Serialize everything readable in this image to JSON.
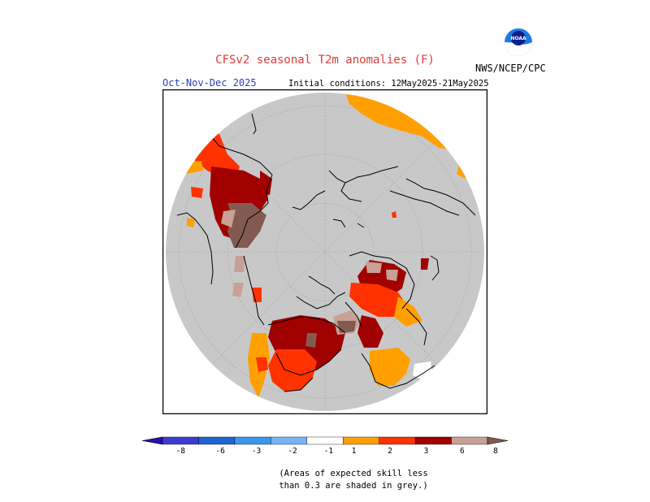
{
  "header": {
    "title": "CFSv2 seasonal T2m anomalies (F)",
    "period": "Oct-Nov-Dec 2025",
    "initial_conditions": "Initial conditions: 12May2025-21May2025",
    "agency": "NWS/NCEP/CPC",
    "logo_text": "NOAA"
  },
  "colorbar": {
    "labels": [
      "-8",
      "-6",
      "-3",
      "-2",
      "-1",
      "1",
      "2",
      "3",
      "6",
      "8"
    ],
    "colors": [
      "#2a0fa8",
      "#3c3cd2",
      "#1e64d2",
      "#3c96ee",
      "#78b4f5",
      "#ffffff",
      "#ffa000",
      "#ff3200",
      "#a00000",
      "#c8a096",
      "#825a50"
    ]
  },
  "note": {
    "line1": "(Areas of expected skill less",
    "line2": "than 0.3 are shaded in grey.)"
  },
  "map": {
    "background": "#c8c8c8",
    "projection": "north-polar-stereographic"
  }
}
